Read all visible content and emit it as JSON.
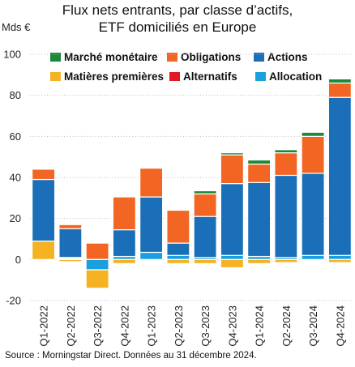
{
  "chart_data": {
    "type": "bar",
    "stacked": true,
    "title_line1": "Flux nets entrants, par classe d’actifs,",
    "title_line2": "ETF domiciliés en Europe",
    "ylabel": "Mds €",
    "ylim": [
      -20,
      100
    ],
    "yticks": [
      -20,
      0,
      20,
      40,
      60,
      80,
      100
    ],
    "grid": true,
    "legend_position": "top",
    "source": "Source : Morningstar Direct. Données au 31 décembre 2024.",
    "categories": [
      "Q1-2022",
      "Q2-2022",
      "Q3-2022",
      "Q4-2022",
      "Q1-2023",
      "Q2-2023",
      "Q3-2023",
      "Q4-2023",
      "Q1-2024",
      "Q2-2024",
      "Q3-2024",
      "Q4-2024"
    ],
    "series": [
      {
        "name": "Marché monétaire",
        "color": "#1a8a3a",
        "values": [
          0,
          0,
          0,
          0,
          0,
          0,
          1.5,
          1,
          2,
          1.5,
          2,
          2
        ]
      },
      {
        "name": "Obligations",
        "color": "#f26522",
        "values": [
          5,
          2,
          8,
          16,
          14,
          16,
          11,
          14,
          9,
          11,
          18,
          7
        ]
      },
      {
        "name": "Actions",
        "color": "#1a6fb8",
        "values": [
          30,
          14,
          0,
          13,
          27,
          6,
          20,
          35,
          36,
          40,
          40,
          77
        ]
      },
      {
        "name": "Matières premières",
        "color": "#f5b324",
        "values": [
          9,
          -1,
          -9,
          -2,
          0,
          -2,
          -2,
          -4,
          -2,
          -1.5,
          0,
          -1.5
        ]
      },
      {
        "name": "Alternatifs",
        "color": "#e21b23",
        "values": [
          0,
          0.5,
          0,
          0,
          0,
          0,
          0,
          0,
          0,
          0,
          0,
          0
        ]
      },
      {
        "name": "Allocation",
        "color": "#1aa0e0",
        "values": [
          0,
          0.5,
          -5,
          1.5,
          3.5,
          2,
          1,
          2,
          1.5,
          1,
          2,
          2
        ]
      }
    ]
  }
}
